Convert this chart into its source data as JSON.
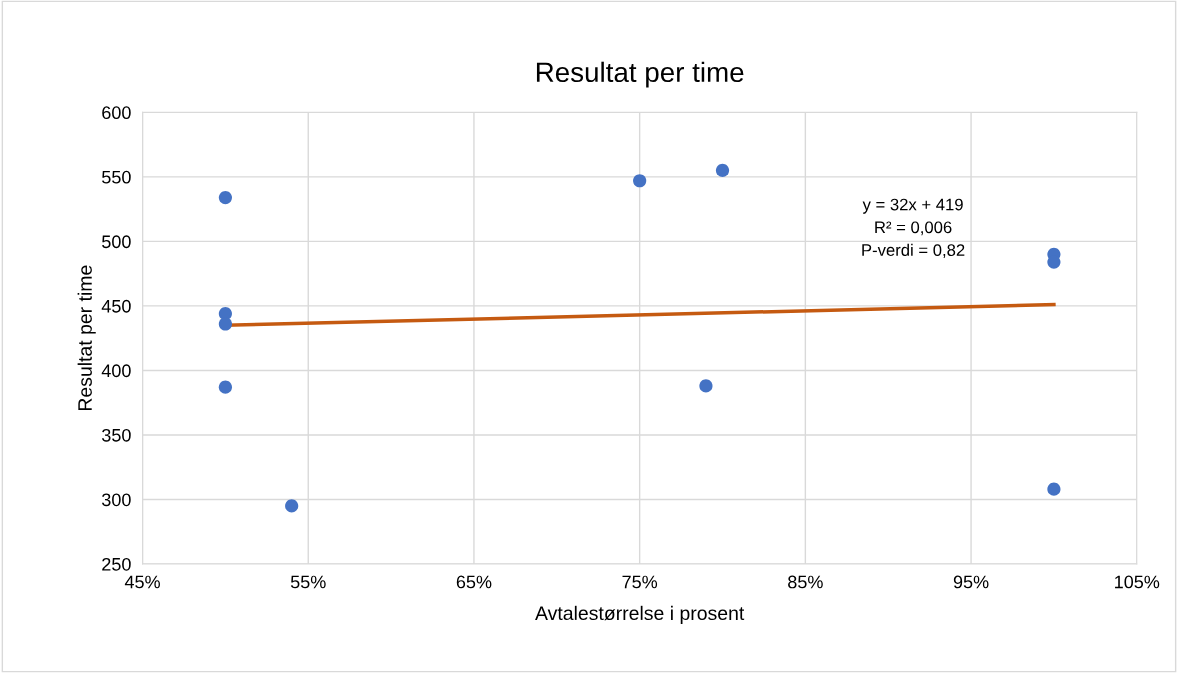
{
  "chart_data": {
    "type": "scatter",
    "title": "Resultat per time",
    "xlabel": "Avtalestørrelse i prosent",
    "ylabel": "Resultat per time",
    "series": [
      {
        "color": "#4472c4",
        "x": [
          50,
          50,
          50,
          50,
          54,
          75,
          80,
          79,
          100,
          100,
          100
        ],
        "values": [
          534,
          444,
          436,
          387,
          295,
          547,
          555,
          388,
          490,
          484,
          308
        ]
      },
      {
        "type": "line",
        "color": "#c55a11",
        "x": [
          50,
          100
        ],
        "values": [
          435,
          451
        ],
        "marker": "none"
      }
    ],
    "marker": "circle",
    "xlim": [
      45,
      105
    ],
    "xticks": [
      {
        "value": 45,
        "label": "45%"
      },
      {
        "value": 55,
        "label": "55%"
      },
      {
        "value": 65,
        "label": "65%"
      },
      {
        "value": 75,
        "label": "75%"
      },
      {
        "value": 85,
        "label": "85%"
      },
      {
        "value": 95,
        "label": "95%"
      },
      {
        "value": 105,
        "label": "105%"
      }
    ],
    "ylim": [
      250,
      600
    ],
    "yticks": [
      250,
      300,
      350,
      400,
      450,
      500,
      550,
      600
    ],
    "grid": true,
    "legend": false,
    "annotations": [
      "y = 32x + 419\nR² = 0,006\nP-verdi = 0,82"
    ]
  }
}
